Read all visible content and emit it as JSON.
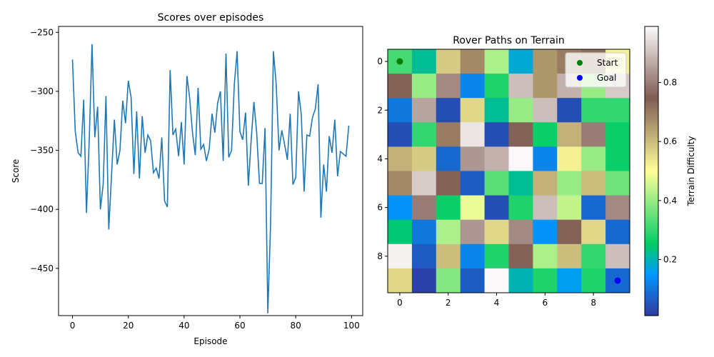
{
  "chart_data": [
    {
      "type": "line",
      "title": "Scores over episodes",
      "xlabel": "Episode",
      "ylabel": "Score",
      "xlim": [
        -5,
        104
      ],
      "ylim": [
        -490,
        -245
      ],
      "xticks": [
        0,
        20,
        40,
        60,
        80,
        100
      ],
      "yticks": [
        -450,
        -400,
        -350,
        -300,
        -250
      ],
      "grid": false,
      "line_color": "#1f77b4",
      "series": [
        {
          "x": [
            0,
            1,
            2,
            3,
            4,
            5,
            6,
            7,
            8,
            9,
            10,
            11,
            12,
            13,
            14,
            15,
            16,
            17,
            18,
            19,
            20,
            21,
            22,
            23,
            24,
            25,
            26,
            27,
            28,
            29,
            30,
            31,
            32,
            33,
            34,
            35,
            36,
            37,
            38,
            39,
            40,
            41,
            42,
            43,
            44,
            45,
            46,
            47,
            48,
            49,
            50,
            51,
            52,
            53,
            54,
            55,
            56,
            57,
            58,
            59,
            60,
            61,
            62,
            63,
            64,
            65,
            66,
            67,
            68,
            69,
            70,
            71,
            72,
            73,
            74,
            75,
            76,
            77,
            78,
            79,
            80,
            81,
            82,
            83,
            84,
            85,
            86,
            87,
            88,
            89,
            90,
            91,
            92,
            93,
            94,
            95,
            96,
            97,
            98,
            99
          ],
          "values": [
            -273,
            -334,
            -352,
            -355,
            -307,
            -403,
            -341,
            -260,
            -339,
            -313,
            -400,
            -379,
            -304,
            -417,
            -370,
            -324,
            -362,
            -350,
            -308,
            -327,
            -291,
            -305,
            -370,
            -317,
            -374,
            -321,
            -352,
            -337,
            -342,
            -369,
            -365,
            -374,
            -339,
            -393,
            -398,
            -282,
            -337,
            -332,
            -355,
            -326,
            -362,
            -287,
            -306,
            -335,
            -354,
            -297,
            -349,
            -345,
            -359,
            -349,
            -319,
            -335,
            -310,
            -300,
            -359,
            -268,
            -356,
            -350,
            -294,
            -266,
            -334,
            -341,
            -318,
            -380,
            -342,
            -309,
            -335,
            -378,
            -378,
            -331,
            -488,
            -412,
            -266,
            -294,
            -350,
            -333,
            -345,
            -358,
            -319,
            -379,
            -373,
            -300,
            -320,
            -385,
            -337,
            -338,
            -322,
            -315,
            -294,
            -407,
            -362,
            -385,
            -338,
            -352,
            -324,
            -372,
            -351,
            -353,
            -355,
            -329
          ]
        }
      ]
    },
    {
      "type": "heatmap",
      "title": "Rover Paths on Terrain",
      "colorbar_label": "Terrain Difficulty",
      "colormap": "terrain",
      "xlim": [
        -0.5,
        9.5
      ],
      "ylim": [
        9.5,
        -0.5
      ],
      "xticks": [
        0,
        2,
        4,
        6,
        8
      ],
      "yticks": [
        0,
        2,
        4,
        6,
        8
      ],
      "colorbar_ticks": [
        0.2,
        0.4,
        0.6,
        0.8
      ],
      "colorbar_range": [
        0.01,
        0.99
      ],
      "legend_position": "upper right",
      "values": [
        [
          0.32,
          0.22,
          0.58,
          0.68,
          0.42,
          0.18,
          0.66,
          0.7,
          0.72,
          0.52
        ],
        [
          0.74,
          0.4,
          0.82,
          0.12,
          0.28,
          0.9,
          0.66,
          0.88,
          0.4,
          0.92
        ],
        [
          0.1,
          0.86,
          0.04,
          0.56,
          0.22,
          0.4,
          0.9,
          0.04,
          0.3,
          0.3
        ],
        [
          0.04,
          0.3,
          0.7,
          0.96,
          0.04,
          0.74,
          0.26,
          0.62,
          0.8,
          0.26
        ],
        [
          0.62,
          0.58,
          0.08,
          0.84,
          0.88,
          0.99,
          0.12,
          0.52,
          0.4,
          0.26
        ],
        [
          0.68,
          0.92,
          0.74,
          0.06,
          0.34,
          0.22,
          0.62,
          0.4,
          0.6,
          0.36
        ],
        [
          0.14,
          0.8,
          0.26,
          0.48,
          0.04,
          0.28,
          0.9,
          0.44,
          0.08,
          0.82
        ],
        [
          0.24,
          0.1,
          0.42,
          0.84,
          0.56,
          0.82,
          0.14,
          0.74,
          0.56,
          0.08
        ],
        [
          0.98,
          0.06,
          0.6,
          0.12,
          0.28,
          0.74,
          0.42,
          0.6,
          0.3,
          0.9
        ],
        [
          0.56,
          0.02,
          0.38,
          0.06,
          0.99,
          0.2,
          0.28,
          0.16,
          0.28,
          0.08
        ]
      ],
      "markers": [
        {
          "name": "Start",
          "x": 0,
          "y": 0,
          "color": "#008000"
        },
        {
          "name": "Goal",
          "x": 9,
          "y": 9,
          "color": "#0000ff"
        }
      ]
    }
  ]
}
